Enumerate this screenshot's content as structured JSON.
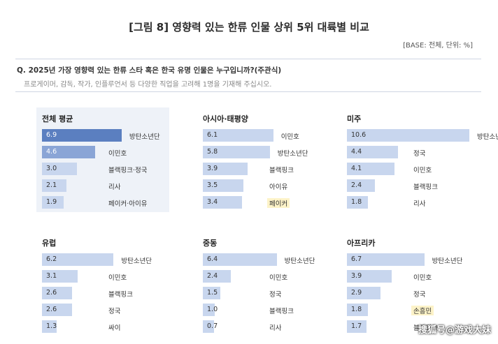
{
  "header": {
    "title": "[그림 8] 영향력 있는 한류 인물 상위 5위 대륙별 비교",
    "base": "[BASE: 전체, 단위: %]"
  },
  "question": {
    "text": "Q. 2025년 가장 영향력 있는 한류 스타 혹은 한국 유명 인물은 누구입니까?(주관식)",
    "subtext": "프로게이머, 감독, 작가, 인플루언서 등 다양한 직업을 고려해 1명을 기재해 주십시오."
  },
  "watermark": "搜狐号@游戏大妹",
  "colors": {
    "bar_light": "#c8d6ee",
    "bar_dark": "#5b7fc0",
    "bar_mid": "#8aa5d6",
    "highlight_bg": "#eef2f8",
    "name_highlight": "#fdf3c8"
  },
  "chart_data": [
    {
      "type": "bar",
      "title": "전체 평균",
      "categories": [
        "방탄소년단",
        "이민호",
        "블랙핑크·정국",
        "리사",
        "페이커·아이유"
      ],
      "values": [
        6.9,
        4.6,
        3.0,
        2.1,
        1.9
      ],
      "value_labels": [
        "6.9",
        "4.6",
        "3.0",
        "2.1",
        "1.9"
      ],
      "orientation": "horizontal"
    },
    {
      "type": "bar",
      "title": "아시아·태평양",
      "categories": [
        "이민호",
        "방탄소년단",
        "블랙핑크",
        "아이유",
        "페이커"
      ],
      "values": [
        6.1,
        5.8,
        3.9,
        3.5,
        3.4
      ],
      "value_labels": [
        "6.1",
        "5.8",
        "3.9",
        "3.5",
        "3.4"
      ],
      "orientation": "horizontal",
      "highlighted": [
        "페이커"
      ]
    },
    {
      "type": "bar",
      "title": "미주",
      "categories": [
        "방탄소년단",
        "정국",
        "이민호",
        "블랙핑크",
        "리사"
      ],
      "values": [
        10.6,
        4.4,
        4.1,
        2.4,
        1.8
      ],
      "value_labels": [
        "10.6",
        "4.4",
        "4.1",
        "2.4",
        "1.8"
      ],
      "orientation": "horizontal"
    },
    {
      "type": "bar",
      "title": "유럽",
      "categories": [
        "방탄소년단",
        "이민호",
        "블랙핑크",
        "정국",
        "싸이"
      ],
      "values": [
        6.2,
        3.1,
        2.6,
        2.6,
        1.3
      ],
      "value_labels": [
        "6.2",
        "3.1",
        "2.6",
        "2.6",
        "1.3"
      ],
      "orientation": "horizontal"
    },
    {
      "type": "bar",
      "title": "중동",
      "categories": [
        "방탄소년단",
        "이민호",
        "정국",
        "블랙핑크",
        "리사"
      ],
      "values": [
        6.4,
        2.4,
        1.5,
        1.0,
        0.7
      ],
      "value_labels": [
        "6.4",
        "2.4",
        "1.5",
        "1.0",
        "0.7"
      ],
      "orientation": "horizontal"
    },
    {
      "type": "bar",
      "title": "아프리카",
      "categories": [
        "방탄소년단",
        "이민호",
        "정국",
        "손흥민",
        "블랙핑크"
      ],
      "values": [
        6.7,
        3.9,
        2.9,
        1.8,
        1.7
      ],
      "value_labels": [
        "6.7",
        "3.9",
        "2.9",
        "1.8",
        "1.7"
      ],
      "orientation": "horizontal",
      "highlighted": [
        "손흥민"
      ]
    }
  ]
}
